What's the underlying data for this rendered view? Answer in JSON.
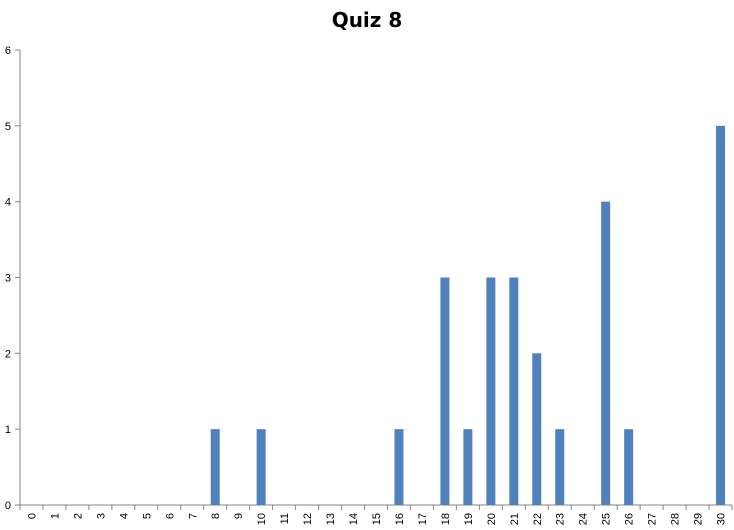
{
  "chart_data": {
    "type": "bar",
    "title": "Quiz 8",
    "xlabel": "",
    "ylabel": "",
    "categories": [
      "0",
      "1",
      "2",
      "3",
      "4",
      "5",
      "6",
      "7",
      "8",
      "9",
      "10",
      "11",
      "12",
      "13",
      "14",
      "15",
      "16",
      "17",
      "18",
      "19",
      "20",
      "21",
      "22",
      "23",
      "24",
      "25",
      "26",
      "27",
      "28",
      "29",
      "30"
    ],
    "values": [
      0,
      0,
      0,
      0,
      0,
      0,
      0,
      0,
      1,
      0,
      1,
      0,
      0,
      0,
      0,
      0,
      1,
      0,
      3,
      1,
      3,
      3,
      2,
      1,
      0,
      4,
      1,
      0,
      0,
      0,
      5
    ],
    "ylim": [
      0,
      6
    ],
    "yticks": [
      "0",
      "1",
      "2",
      "3",
      "4",
      "5",
      "6"
    ],
    "grid": false,
    "legend": "none",
    "bar_color": "#4F81BD",
    "axis_color": "#868686"
  }
}
